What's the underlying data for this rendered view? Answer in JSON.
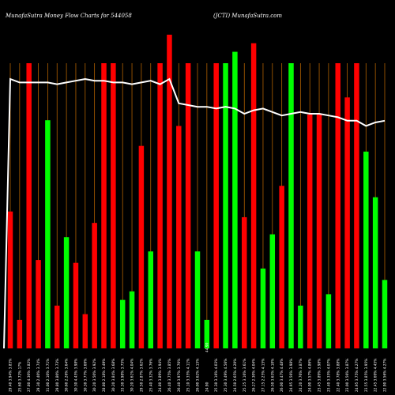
{
  "chart_data": {
    "type": "bar",
    "title_left": "MunafaSutra  Money Flow  Charts for 544058",
    "title_right": "(JCTI) MunafaSutra.com",
    "colors": {
      "background": "#000000",
      "up": "#00ff00",
      "down": "#ff0000",
      "grid": "#b06000",
      "line": "#ffffff"
    },
    "ylim": [
      0,
      100
    ],
    "grid": true,
    "categories": [
      "29.40 3.94% 3.83%",
      "25.60 3.72% 17%",
      "27.80 4.30% 3.82%",
      "29.30 2.40% 3.74%",
      "31.00 2.10% 3.71%",
      "29.80 3.80% 3.73%",
      "30.60 2.26% 3.64%",
      "30.30 4.45% 3.98%",
      "30.30 3.77% 3.69%",
      "30.20 3.50% 3.92%",
      "28.80 2.18% 3.49%",
      "30.20 3.84% 3.68%",
      "33.30 3.98% 3.75%",
      "30.20 3.61% 4.04%",
      "29.50 2.87% 3.62%",
      "25.40 3.32% 3.76%",
      "24.80 3.89% 3.94%",
      "26.40 3.75% 3.85%",
      "26.40 3.97% 3.76%",
      "25.10 3.35% 4.11%",
      "26.00 3.62% 4.15%",
      "24.90",
      "25.30 3.16% 4.03%",
      "25.30 3.49% 4.56%",
      "24.50 2.65% 4.20%",
      "25.25 3.16% 3.61%",
      "26.27 2.30% 4.04%",
      "27.15 2.25% 4.15%",
      "26.50 3.63% 4.10%",
      "26.00 3.47% 4.48%",
      "24.95 3.56% 3.98%",
      "24.20 3.76% 3.87%",
      "24.00 3.57% 4.86%",
      "23.45 3.89% 3.98%",
      "23.40 3.35% 4.07%",
      "22.40 3.78% 3.88%",
      "23.00 3.56% 3.87%",
      "24.95 3.75% 4.27%",
      "23.55 3.85% 3.95%",
      "22.45 3.69% 4.45%",
      "22.90 3.56% 4.27%"
    ],
    "center_label": "44.90",
    "series": [
      {
        "values": [
          {
            "v": 48,
            "c": "down"
          },
          {
            "v": 10,
            "c": "down"
          },
          {
            "v": 100,
            "c": "down"
          },
          {
            "v": 31,
            "c": "down"
          },
          {
            "v": 80,
            "c": "up"
          },
          {
            "v": 15,
            "c": "down"
          },
          {
            "v": 39,
            "c": "up"
          },
          {
            "v": 30,
            "c": "down"
          },
          {
            "v": 12,
            "c": "down"
          },
          {
            "v": 44,
            "c": "down"
          },
          {
            "v": 100,
            "c": "down"
          },
          {
            "v": 100,
            "c": "down"
          },
          {
            "v": 17,
            "c": "up"
          },
          {
            "v": 20,
            "c": "up"
          },
          {
            "v": 71,
            "c": "down"
          },
          {
            "v": 34,
            "c": "up"
          },
          {
            "v": 100,
            "c": "down"
          },
          {
            "v": 110,
            "c": "down"
          },
          {
            "v": 78,
            "c": "down"
          },
          {
            "v": 100,
            "c": "down"
          },
          {
            "v": 34,
            "c": "up"
          },
          {
            "v": 10,
            "c": "up"
          },
          {
            "v": 100,
            "c": "down"
          },
          {
            "v": 100,
            "c": "up"
          },
          {
            "v": 104,
            "c": "up"
          },
          {
            "v": 46,
            "c": "down"
          },
          {
            "v": 107,
            "c": "down"
          },
          {
            "v": 28,
            "c": "up"
          },
          {
            "v": 40,
            "c": "up"
          },
          {
            "v": 57,
            "c": "down"
          },
          {
            "v": 100,
            "c": "up"
          },
          {
            "v": 15,
            "c": "up"
          },
          {
            "v": 82,
            "c": "down"
          },
          {
            "v": 82,
            "c": "down"
          },
          {
            "v": 19,
            "c": "up"
          },
          {
            "v": 100,
            "c": "down"
          },
          {
            "v": 88,
            "c": "down"
          },
          {
            "v": 100,
            "c": "down"
          },
          {
            "v": 69,
            "c": "up"
          },
          {
            "v": 53,
            "c": "up"
          },
          {
            "v": 24,
            "c": "up"
          }
        ]
      }
    ],
    "line": [
      100,
      98,
      98,
      98,
      98,
      97,
      98,
      99,
      100,
      99,
      99,
      98,
      98,
      97,
      98,
      99,
      97,
      100,
      86,
      85,
      84,
      84,
      83,
      84,
      83,
      80,
      82,
      83,
      81,
      79,
      80,
      81,
      80,
      80,
      79,
      78,
      76,
      76,
      73,
      75,
      76
    ]
  }
}
